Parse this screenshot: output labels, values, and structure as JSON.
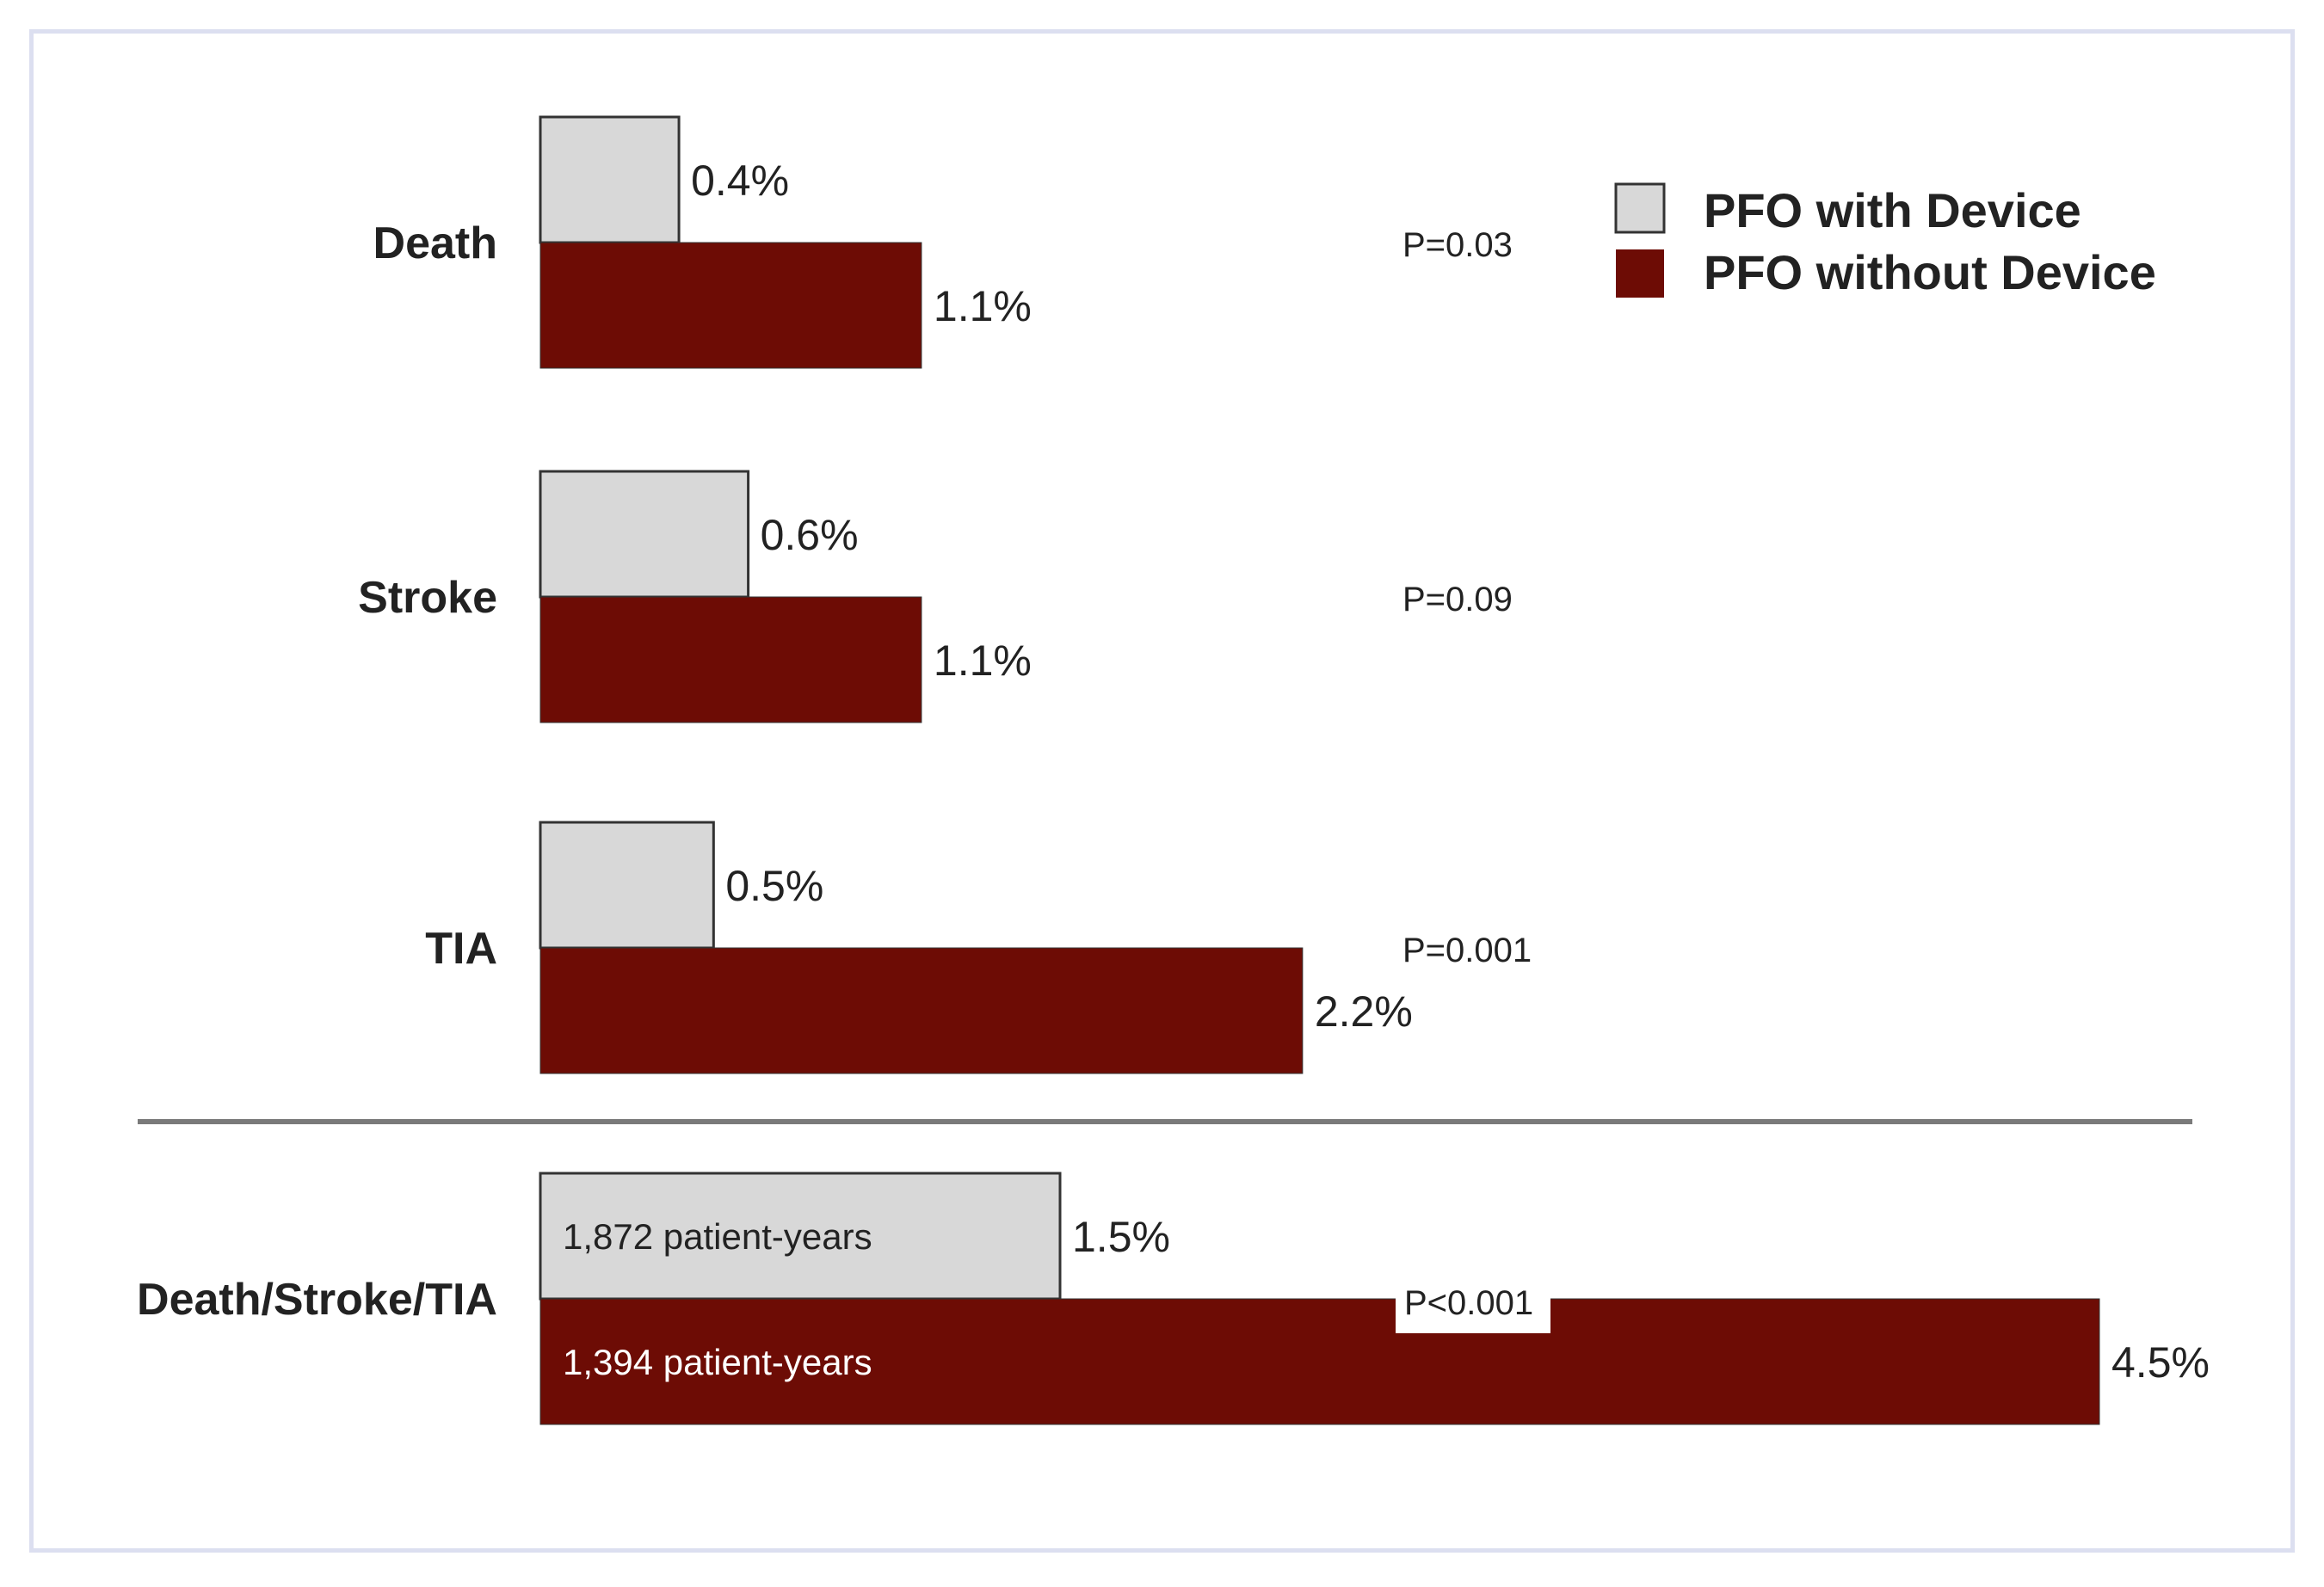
{
  "chart_data": {
    "type": "bar",
    "orientation": "horizontal",
    "categories": [
      "Death",
      "Stroke",
      "TIA",
      "Death/Stroke/TIA"
    ],
    "series": [
      {
        "name": "PFO with Device",
        "values": [
          0.4,
          0.6,
          0.5,
          1.5
        ],
        "labels": [
          "0.4%",
          "0.6%",
          "0.5%",
          "1.5%"
        ]
      },
      {
        "name": "PFO without Device",
        "values": [
          1.1,
          1.1,
          2.2,
          4.5
        ],
        "labels": [
          "1.1%",
          "1.1%",
          "2.2%",
          "4.5%"
        ]
      }
    ],
    "p_values": [
      "P=0.03",
      "P=0.09",
      "P=0.001",
      "P<0.001"
    ],
    "bar_annotations": {
      "with_device": "1,872 patient-years",
      "without_device": "1,394 patient-years"
    },
    "xlim": [
      0,
      4.5
    ],
    "grid": false,
    "legend_position": "top-right",
    "colors": {
      "with_device": "#d8d8d8",
      "without_device": "#6d0c05",
      "outline": "#333333",
      "separator": "#7a7a7a"
    }
  }
}
